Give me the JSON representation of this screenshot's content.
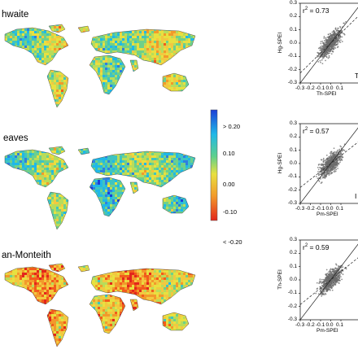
{
  "maps": [
    {
      "label": "hwaite"
    },
    {
      "label": "eaves"
    },
    {
      "label": "an-Monteith"
    }
  ],
  "colorbar": {
    "ticks": [
      "> 0.20",
      "0.10",
      "0.00",
      "-0.10",
      "< -0.20"
    ],
    "colors": [
      "#1d3fd6",
      "#1fb8e8",
      "#5ed08c",
      "#e8e040",
      "#f29a2b",
      "#e3261c"
    ]
  },
  "chart_data": [
    {
      "type": "scatter",
      "ylabel": "Hg-SPEI",
      "xlabel": "Th-SPEI",
      "r2_label": "r",
      "r2_value": " = 0.73",
      "corner_letter": "T",
      "yticks": [
        "0.3",
        "0.2",
        "0.1",
        "0.0",
        "-0.1",
        "-0.2",
        "-0.3"
      ],
      "xticks": [
        "-0.3",
        "-0.2",
        "-0.1",
        "0.0",
        "0.1"
      ],
      "xlim": [
        -0.3,
        0.3
      ],
      "ylim": [
        -0.3,
        0.3
      ],
      "fit": {
        "slope": 0.75,
        "intercept": 0.0
      }
    },
    {
      "type": "scatter",
      "ylabel": "Hg-SPEI",
      "xlabel": "Pm-SPEI",
      "r2_label": "r",
      "r2_value": " = 0.57",
      "corner_letter": "I",
      "yticks": [
        "0.3",
        "0.2",
        "0.1",
        "0.0",
        "-0.1",
        "-0.2",
        "-0.3"
      ],
      "xticks": [
        "-0.3",
        "-0.2",
        "-0.1",
        "0.0",
        "0.1"
      ],
      "xlim": [
        -0.3,
        0.3
      ],
      "ylim": [
        -0.3,
        0.3
      ],
      "fit": {
        "slope": 0.6,
        "intercept": 0.0
      }
    },
    {
      "type": "scatter",
      "ylabel": "Th-SPEI",
      "xlabel": "Pm-SPEI",
      "r2_label": "r",
      "r2_value": " = 0.59",
      "corner_letter": "",
      "yticks": [
        "0.3",
        "0.2",
        "0.1",
        "0.0",
        "-0.1",
        "-0.2",
        "-0.3"
      ],
      "xticks": [
        "-0.3",
        "-0.2",
        "-0.1",
        "0.0",
        "0.1"
      ],
      "xlim": [
        -0.3,
        0.3
      ],
      "ylim": [
        -0.3,
        0.3
      ],
      "fit": {
        "slope": 0.62,
        "intercept": 0.0
      }
    }
  ]
}
